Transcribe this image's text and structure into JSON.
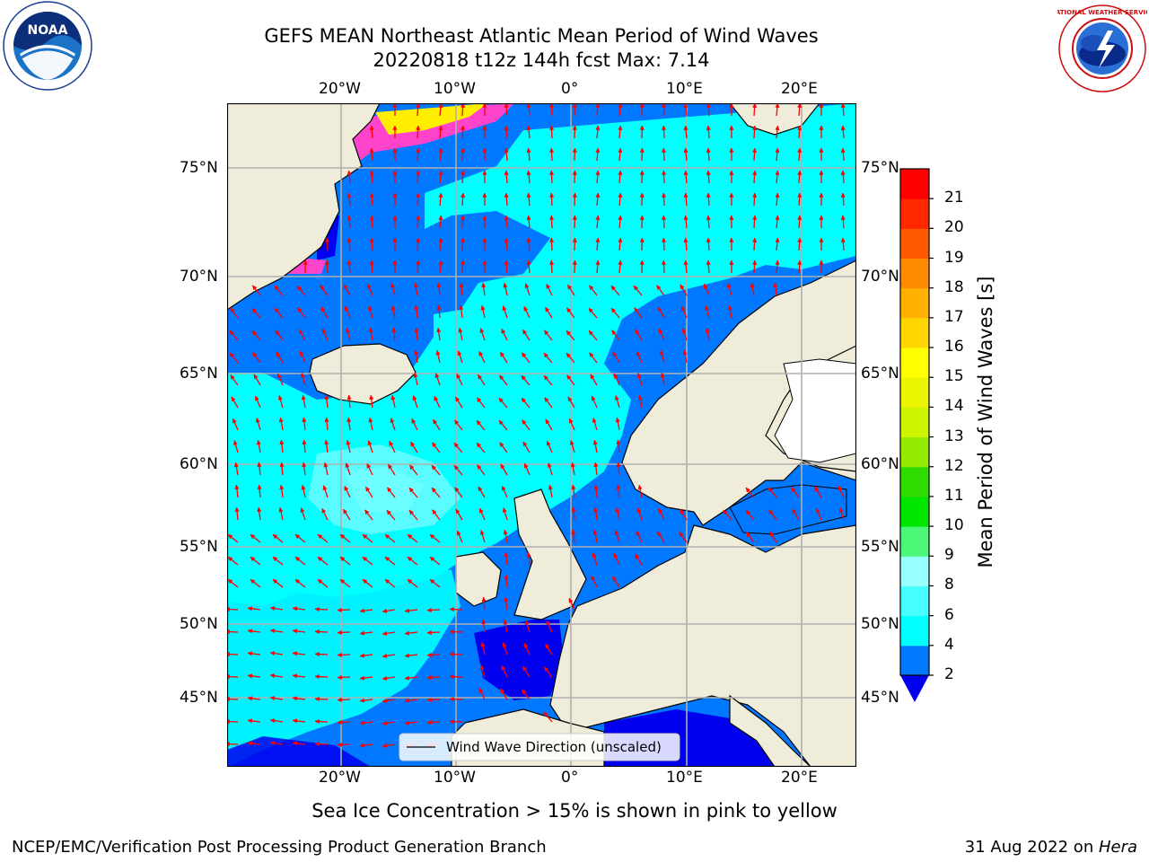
{
  "title": {
    "line1": "GEFS MEAN Northeast Atlantic Mean Period of Wind Waves",
    "line2": "20220818 t12z 144h fcst   Max: 7.14"
  },
  "map": {
    "lon_labels": [
      "20°W",
      "10°W",
      "0°",
      "10°E",
      "20°E"
    ],
    "lat_labels": [
      "75°N",
      "70°N",
      "65°N",
      "60°N",
      "55°N",
      "50°N",
      "45°N"
    ],
    "legend_label": "Wind Wave Direction (unscaled)",
    "colors": {
      "land": "#efedda",
      "deep_blue": "#0000ee",
      "blue": "#0078ff",
      "cyan": "#00ffff",
      "light_cyan": "#48ffff",
      "ice_pink": "#ff44cc",
      "ice_yellow": "#ffee00",
      "arrow": "#ff0000",
      "grid": "#b0b0b0"
    }
  },
  "colorbar": {
    "label": "Mean Period of Wind Waves [s]",
    "ticks": [
      "2",
      "4",
      "6",
      "8",
      "9",
      "10",
      "11",
      "12",
      "13",
      "14",
      "15",
      "16",
      "17",
      "18",
      "19",
      "20",
      "21"
    ],
    "colors": [
      "#0078ff",
      "#00ffff",
      "#48ffff",
      "#98ffff",
      "#4cf676",
      "#00e600",
      "#2edc00",
      "#96eb00",
      "#cdf500",
      "#ebf500",
      "#ffff00",
      "#ffd700",
      "#ffb000",
      "#ff8c00",
      "#ff5a00",
      "#ff2800",
      "#ff0000"
    ],
    "under_color": "#0000ee"
  },
  "caption": "Sea Ice Concentration > 15% is shown in pink to yellow",
  "footer": {
    "left": "NCEP/EMC/Verification Post Processing Product Generation Branch",
    "right_prefix": "31 Aug 2022 on ",
    "right_host": "Hera"
  },
  "logos": {
    "noaa_text": "NOAA",
    "nws_text": "NATIONAL WEATHER SERVICE"
  }
}
